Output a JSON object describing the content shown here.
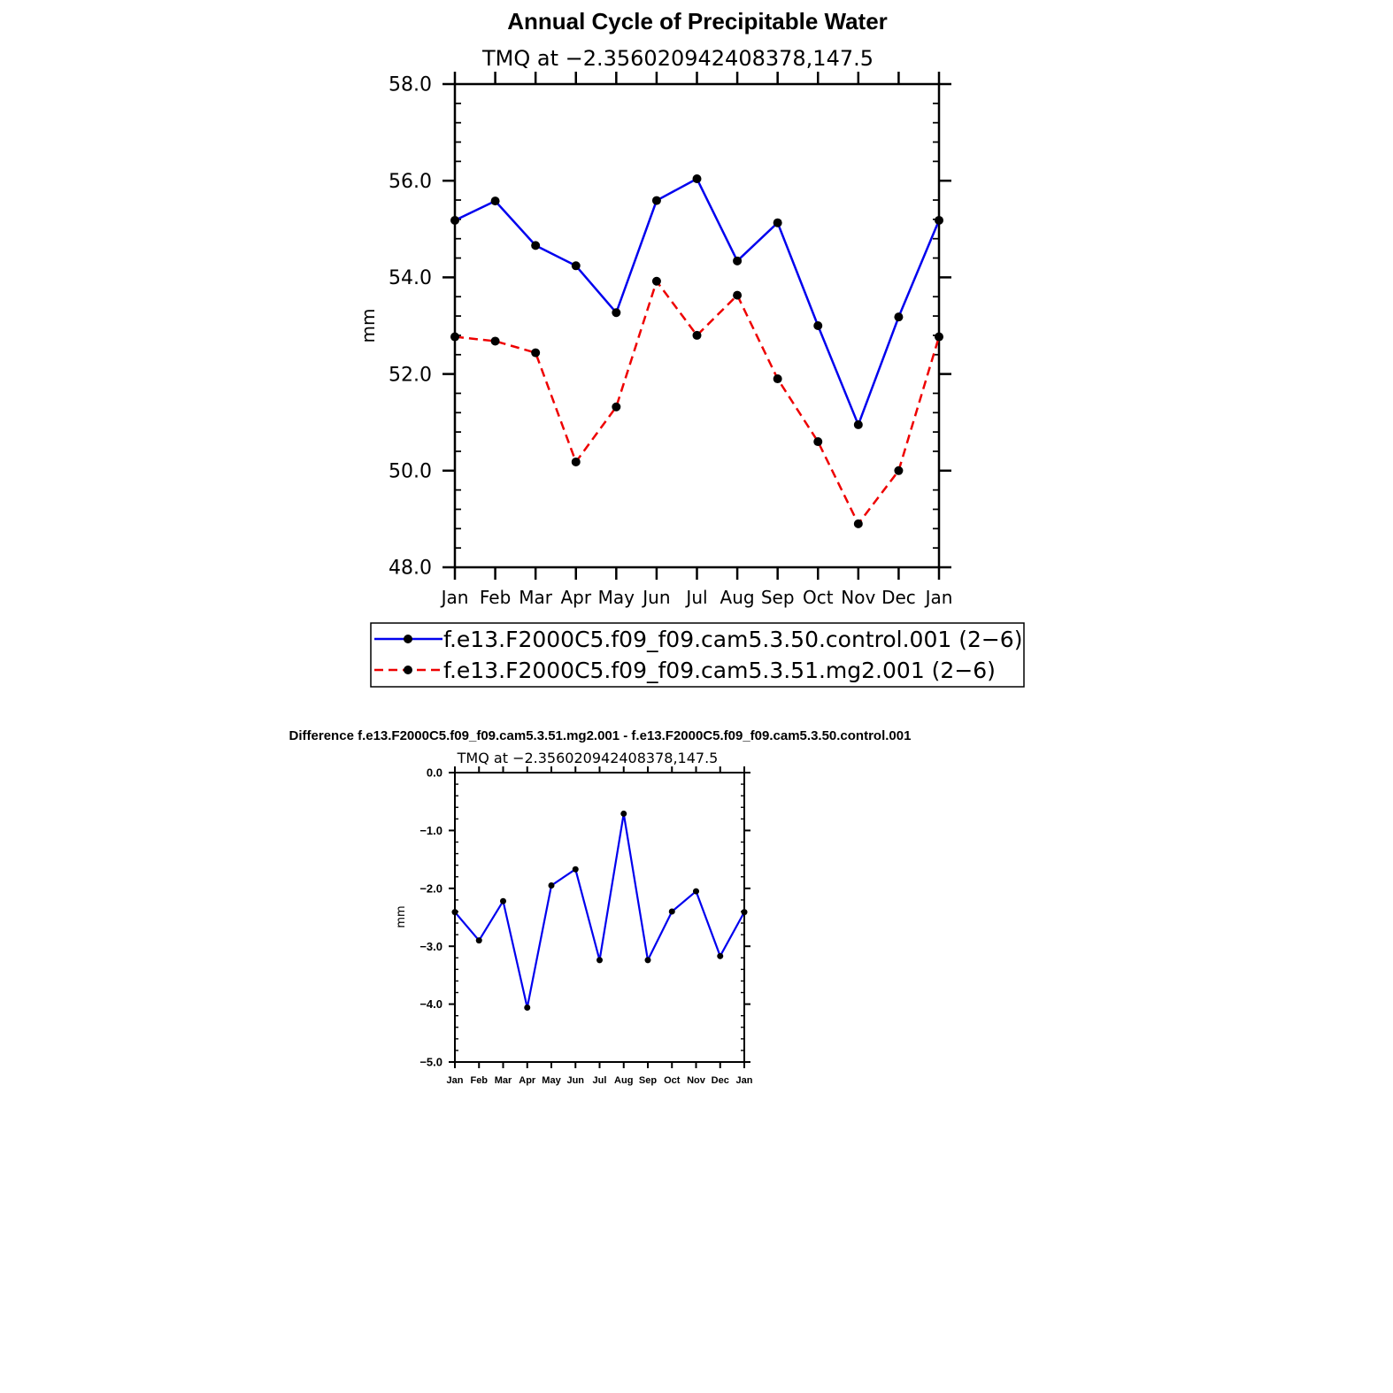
{
  "chart_data": [
    {
      "type": "line",
      "title": "Annual Cycle of Precipitable Water",
      "subtitle": "TMQ at −2.356020942408378,147.5",
      "xlabel": "",
      "ylabel": "mm",
      "categories": [
        "Jan",
        "Feb",
        "Mar",
        "Apr",
        "May",
        "Jun",
        "Jul",
        "Aug",
        "Sep",
        "Oct",
        "Nov",
        "Dec",
        "Jan"
      ],
      "ylim": [
        48.0,
        58.0
      ],
      "yticks": [
        "48.0",
        "50.0",
        "52.0",
        "54.0",
        "56.0",
        "58.0"
      ],
      "series": [
        {
          "name": "f.e13.F2000C5.f09_f09.cam5.3.50.control.001 (2−6)",
          "color": "#0000ee",
          "dash": "solid",
          "values": [
            55.18,
            55.58,
            54.66,
            54.24,
            53.27,
            55.59,
            56.04,
            54.34,
            55.13,
            53.0,
            50.95,
            53.18,
            55.18
          ]
        },
        {
          "name": "f.e13.F2000C5.f09_f09.cam5.3.51.mg2.001 (2−6)",
          "color": "#ee0000",
          "dash": "dashed",
          "values": [
            52.77,
            52.68,
            52.44,
            50.18,
            51.32,
            53.92,
            52.8,
            53.63,
            51.9,
            50.6,
            48.9,
            50.0,
            52.77
          ]
        }
      ],
      "legend_position": "bottom"
    },
    {
      "type": "line",
      "title": "Difference f.e13.F2000C5.f09_f09.cam5.3.51.mg2.001 - f.e13.F2000C5.f09_f09.cam5.3.50.control.001",
      "subtitle": "TMQ at −2.356020942408378,147.5",
      "xlabel": "",
      "ylabel": "mm",
      "categories": [
        "Jan",
        "Feb",
        "Mar",
        "Apr",
        "May",
        "Jun",
        "Jul",
        "Aug",
        "Sep",
        "Oct",
        "Nov",
        "Dec",
        "Jan"
      ],
      "ylim": [
        -5.0,
        0.0
      ],
      "yticks": [
        "−5.0",
        "−4.0",
        "−3.0",
        "−2.0",
        "−1.0",
        "0.0"
      ],
      "series": [
        {
          "name": "difference",
          "color": "#0000ee",
          "dash": "solid",
          "values": [
            -2.41,
            -2.9,
            -2.22,
            -4.06,
            -1.95,
            -1.67,
            -3.24,
            -0.71,
            -3.24,
            -2.4,
            -2.05,
            -3.17,
            -2.41
          ]
        }
      ]
    }
  ]
}
